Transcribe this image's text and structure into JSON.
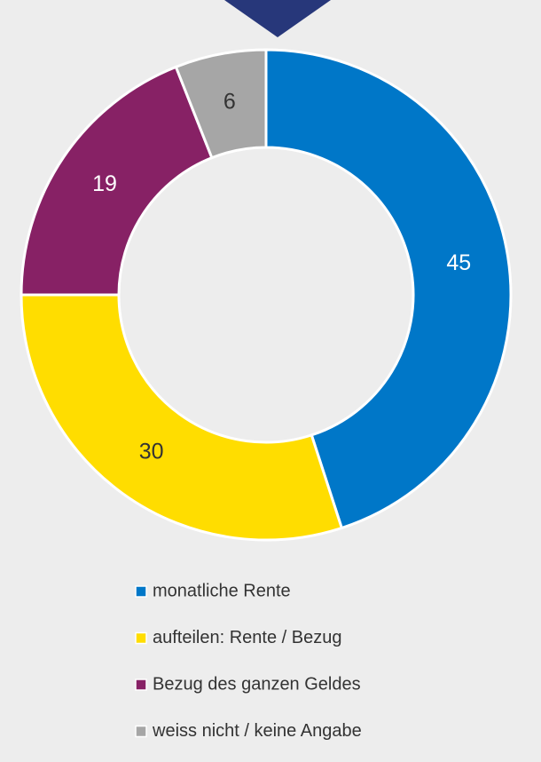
{
  "chart_data": {
    "type": "donut",
    "categories": [
      "monatliche Rente",
      "aufteilen: Rente / Bezug",
      "Bezug des ganzen Geldes",
      "weiss nicht / keine Angabe"
    ],
    "values": [
      45,
      30,
      19,
      6
    ],
    "colors": [
      "#0077c8",
      "#ffdd00",
      "#872165",
      "#a6a6a6"
    ],
    "label_colors": [
      "#ffffff",
      "#333333",
      "#ffffff",
      "#333333"
    ],
    "legend": "bottom"
  }
}
